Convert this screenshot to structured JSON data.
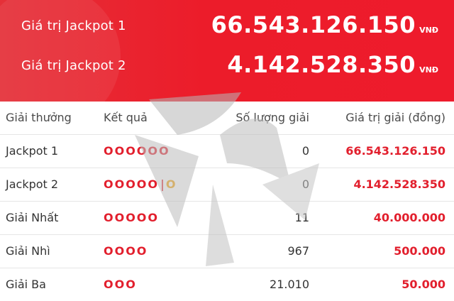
{
  "header": {
    "jackpots": [
      {
        "label": "Giá trị Jackpot 1",
        "value": "66.543.126.150",
        "currency": "VNĐ"
      },
      {
        "label": "Giá trị Jackpot 2",
        "value": "4.142.528.350",
        "currency": "VNĐ"
      }
    ]
  },
  "table": {
    "headers": {
      "prize": "Giải thưởng",
      "result": "Kết quả",
      "count": "Số lượng giải",
      "value": "Giá trị giải (đồng)"
    },
    "rows": [
      {
        "prize": "Jackpot 1",
        "balls": "OOOOOO",
        "count": "0",
        "value": "66.543.126.150"
      },
      {
        "prize": "Jackpot 2",
        "balls": "OOOOO",
        "separator": "|",
        "extra": "O",
        "count": "0",
        "value": "4.142.528.350"
      },
      {
        "prize": "Giải Nhất",
        "balls": "OOOOO",
        "count": "11",
        "value": "40.000.000"
      },
      {
        "prize": "Giải Nhì",
        "balls": "OOOO",
        "count": "967",
        "value": "500.000"
      },
      {
        "prize": "Giải Ba",
        "balls": "OOO",
        "count": "21.010",
        "value": "50.000"
      }
    ]
  },
  "colors": {
    "brand_red": "#ec1c2a",
    "value_red": "#e21f2d",
    "power_ball_orange": "#f2a20c"
  },
  "watermark": {
    "icon": "star-logo-icon"
  }
}
